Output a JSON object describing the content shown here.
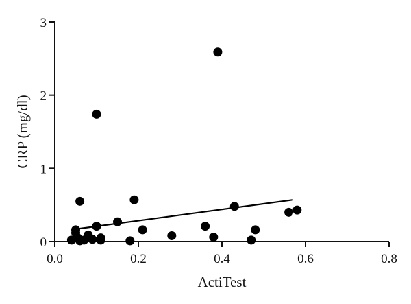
{
  "chart_data": {
    "type": "scatter",
    "title": "",
    "xlabel": "ActiTest",
    "ylabel": "CRP (mg/dl)",
    "xlim": [
      0.0,
      0.8
    ],
    "ylim": [
      0,
      3
    ],
    "xticks": [
      0.0,
      0.2,
      0.4,
      0.6,
      0.8
    ],
    "xtick_labels": [
      "0.0",
      "0.2",
      "0.4",
      "0.6",
      "0.8"
    ],
    "yticks": [
      0,
      1,
      2,
      3
    ],
    "ytick_labels": [
      "0",
      "1",
      "2",
      "3"
    ],
    "grid": false,
    "legend": "none",
    "point_color": "#000000",
    "points": [
      {
        "x": 0.04,
        "y": 0.02
      },
      {
        "x": 0.05,
        "y": 0.16
      },
      {
        "x": 0.05,
        "y": 0.12
      },
      {
        "x": 0.055,
        "y": 0.05
      },
      {
        "x": 0.06,
        "y": 0.55
      },
      {
        "x": 0.06,
        "y": 0.01
      },
      {
        "x": 0.07,
        "y": 0.02
      },
      {
        "x": 0.08,
        "y": 0.09
      },
      {
        "x": 0.09,
        "y": 0.03
      },
      {
        "x": 0.1,
        "y": 1.74
      },
      {
        "x": 0.1,
        "y": 0.21
      },
      {
        "x": 0.11,
        "y": 0.05
      },
      {
        "x": 0.11,
        "y": 0.02
      },
      {
        "x": 0.15,
        "y": 0.27
      },
      {
        "x": 0.18,
        "y": 0.01
      },
      {
        "x": 0.19,
        "y": 0.57
      },
      {
        "x": 0.21,
        "y": 0.16
      },
      {
        "x": 0.28,
        "y": 0.08
      },
      {
        "x": 0.36,
        "y": 0.21
      },
      {
        "x": 0.38,
        "y": 0.06
      },
      {
        "x": 0.39,
        "y": 2.59
      },
      {
        "x": 0.43,
        "y": 0.48
      },
      {
        "x": 0.47,
        "y": 0.02
      },
      {
        "x": 0.48,
        "y": 0.16
      },
      {
        "x": 0.56,
        "y": 0.4
      },
      {
        "x": 0.58,
        "y": 0.43
      }
    ],
    "trendline": {
      "x": [
        0.05,
        0.57
      ],
      "y": [
        0.17,
        0.57
      ]
    }
  }
}
